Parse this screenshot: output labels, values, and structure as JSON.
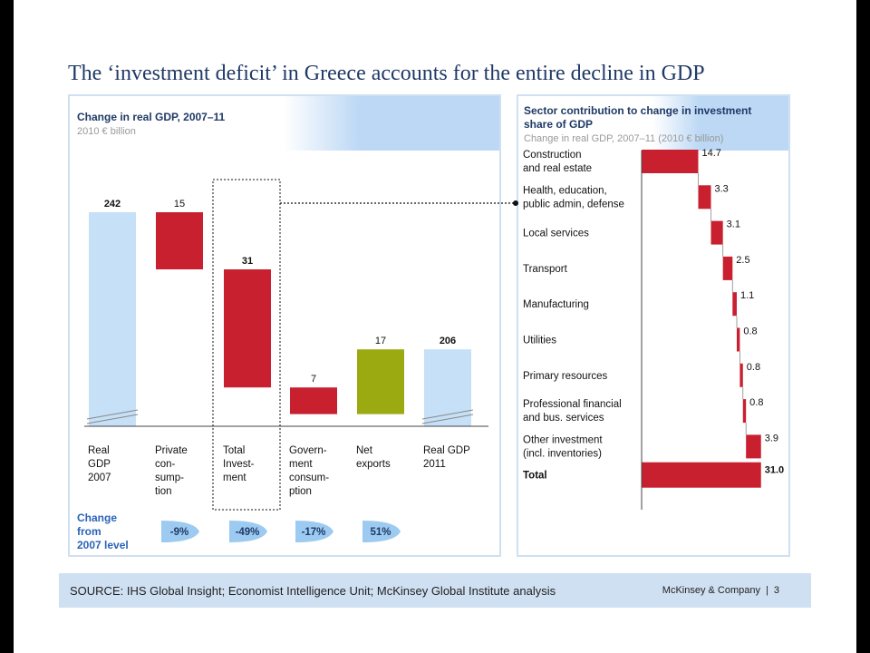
{
  "slide_title": "The ‘investment deficit’ in Greece accounts for the entire decline in GDP",
  "left": {
    "title": "Change in real GDP, 2007–11",
    "subtitle": "2010 € billion",
    "change_label": [
      "Change",
      "from",
      "2007 level"
    ]
  },
  "right": {
    "title_line1": "Sector contribution to change in investment",
    "title_line2": "share of GDP",
    "subtitle": "Change in real GDP, 2007–11 (2010 € billion)"
  },
  "footer": {
    "source": "SOURCE: IHS Global Insight; Economist Intelligence Unit; McKinsey Global Institute analysis",
    "brand": "McKinsey & Company",
    "separator": "|",
    "page": "3"
  },
  "colors": {
    "title": "#1f3a66",
    "total_bar": "#c6e0f7",
    "decline": "#c8202f",
    "increase": "#9caa12",
    "pct_badge": "#9ccaf0",
    "panel_header": "#bcd8f5"
  },
  "chart_data": [
    {
      "type": "waterfall",
      "title": "Change in real GDP, 2007–11",
      "subtitle": "2010 € billion",
      "categories": [
        {
          "lines": [
            "Real",
            "GDP",
            "2007"
          ],
          "value": 242,
          "label": "242",
          "kind": "total",
          "label_bold": true
        },
        {
          "lines": [
            "Private",
            "con-",
            "sump-",
            "tion"
          ],
          "value": -15,
          "label": "15",
          "kind": "decrease",
          "label_bold": false
        },
        {
          "lines": [
            "Total",
            "Invest-",
            "ment"
          ],
          "value": -31,
          "label": "31",
          "kind": "decrease",
          "label_bold": true
        },
        {
          "lines": [
            "Govern-",
            "ment",
            "consum-",
            "ption"
          ],
          "value": -7,
          "label": "7",
          "kind": "decrease",
          "label_bold": false
        },
        {
          "lines": [
            "Net",
            "exports"
          ],
          "value": 17,
          "label": "17",
          "kind": "increase",
          "label_bold": false
        },
        {
          "lines": [
            "Real GDP",
            "2011"
          ],
          "value": 206,
          "label": "206",
          "kind": "total",
          "label_bold": true
        }
      ],
      "pct_change": [
        "",
        "-9%",
        "-49%",
        "-17%",
        "51%",
        ""
      ],
      "highlighted_category": "Total Investment",
      "axis_break": true
    },
    {
      "type": "waterfall-horizontal",
      "title": "Sector contribution to change in investment share of GDP",
      "subtitle": "Change in real GDP, 2007–11 (2010 € billion)",
      "categories": [
        {
          "lines": [
            "Construction",
            "and real estate"
          ],
          "value": 14.7,
          "label": "14.7"
        },
        {
          "lines": [
            "Health, education,",
            "public admin, defense"
          ],
          "value": 3.3,
          "label": "3.3"
        },
        {
          "lines": [
            "Local services"
          ],
          "value": 3.1,
          "label": "3.1"
        },
        {
          "lines": [
            "Transport"
          ],
          "value": 2.5,
          "label": "2.5"
        },
        {
          "lines": [
            "Manufacturing"
          ],
          "value": 1.1,
          "label": "1.1"
        },
        {
          "lines": [
            "Utilities"
          ],
          "value": 0.8,
          "label": "0.8"
        },
        {
          "lines": [
            "Primary resources"
          ],
          "value": 0.8,
          "label": "0.8"
        },
        {
          "lines": [
            "Professional financial",
            "and bus. services"
          ],
          "value": 0.8,
          "label": "0.8"
        },
        {
          "lines": [
            "Other investment",
            "(incl. inventories)"
          ],
          "value": 3.9,
          "label": "3.9"
        }
      ],
      "total": {
        "label": "Total",
        "value": 31.0,
        "value_label": "31.0"
      }
    }
  ]
}
